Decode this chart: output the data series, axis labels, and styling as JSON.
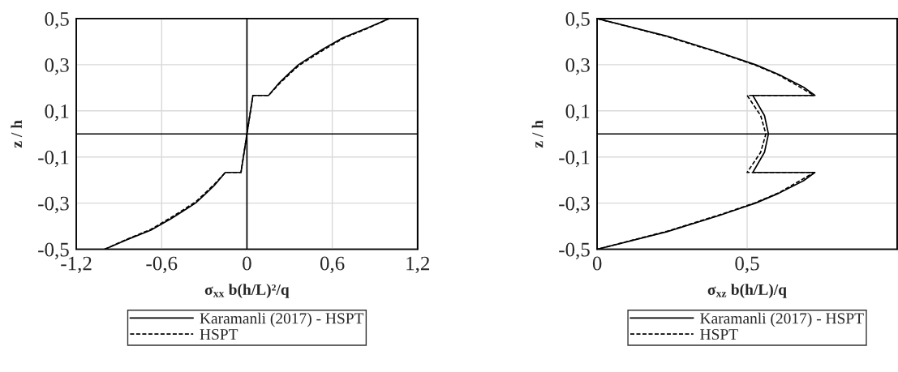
{
  "chart_data": [
    {
      "type": "line",
      "xlabel": "σ$_{xx}$ b(h/L)²/q",
      "ylabel": "z / h",
      "xlim": [
        -1.2,
        1.2
      ],
      "ylim": [
        -0.5,
        0.5
      ],
      "xticks": [
        {
          "value": -1.2,
          "label": "-1,2"
        },
        {
          "value": -0.6,
          "label": "-0,6"
        },
        0,
        {
          "value": 0.6,
          "label": "0,6"
        },
        {
          "value": 1.2,
          "label": "1,2"
        }
      ],
      "yticks": [
        {
          "value": -0.5,
          "label": "-0,5"
        },
        {
          "value": -0.3,
          "label": "-0,3"
        },
        {
          "value": -0.1,
          "label": "-0,1"
        },
        {
          "value": 0.1,
          "label": "0,1"
        },
        {
          "value": 0.3,
          "label": "0,3"
        },
        {
          "value": 0.5,
          "label": "0,5"
        }
      ],
      "grid": true,
      "legend": "bottom",
      "ref_lines": [
        {
          "axis": "x",
          "value": 0
        },
        {
          "axis": "y",
          "value": 0
        }
      ],
      "series": [
        {
          "name": "Karamanli (2017) - HSPT",
          "color": "#000000",
          "line_style": "solid",
          "x": [
            -1.0,
            -0.85,
            -0.676,
            -0.533,
            -0.45,
            -0.362,
            -0.3,
            -0.229,
            -0.152,
            -0.042,
            0,
            0.042,
            0.152,
            0.229,
            0.3,
            0.362,
            0.45,
            0.533,
            0.676,
            0.85,
            1.0
          ],
          "values": [
            -0.5,
            -0.46,
            -0.417,
            -0.367,
            -0.335,
            -0.3,
            -0.265,
            -0.223,
            -0.167,
            -0.167,
            0,
            0.167,
            0.167,
            0.223,
            0.265,
            0.3,
            0.335,
            0.367,
            0.417,
            0.46,
            0.5
          ]
        },
        {
          "name": "HSPT",
          "color": "#000000",
          "line_style": "dashed",
          "x": [
            -1.0,
            -0.85,
            -0.676,
            -0.533,
            -0.45,
            -0.362,
            -0.3,
            -0.229,
            -0.152,
            -0.042,
            0,
            0.042,
            0.152,
            0.229,
            0.3,
            0.362,
            0.45,
            0.533,
            0.676,
            0.85,
            1.0
          ],
          "values": [
            -0.5,
            -0.458,
            -0.414,
            -0.362,
            -0.33,
            -0.295,
            -0.26,
            -0.218,
            -0.167,
            -0.167,
            0,
            0.167,
            0.167,
            0.218,
            0.26,
            0.295,
            0.33,
            0.362,
            0.414,
            0.458,
            0.5
          ]
        }
      ]
    },
    {
      "type": "line",
      "xlabel": "σ$_{xz}$ b(h/L)/q",
      "ylabel": "z / h",
      "xlim": [
        0,
        1
      ],
      "ylim": [
        -0.5,
        0.5
      ],
      "xticks": [
        0,
        {
          "value": 0.5,
          "label": "0,5"
        }
      ],
      "yticks": [
        {
          "value": -0.5,
          "label": "-0,5"
        },
        {
          "value": -0.3,
          "label": "-0,3"
        },
        {
          "value": -0.1,
          "label": "-0,1"
        },
        {
          "value": 0.1,
          "label": "0,1"
        },
        {
          "value": 0.3,
          "label": "0,3"
        },
        {
          "value": 0.5,
          "label": "0,5"
        }
      ],
      "grid": true,
      "legend": "bottom",
      "ref_lines": [
        {
          "axis": "y",
          "value": 0
        }
      ],
      "series": [
        {
          "name": "Karamanli (2017) - HSPT",
          "color": "#000000",
          "line_style": "solid",
          "x": [
            0,
            0.233,
            0.406,
            0.528,
            0.606,
            0.688,
            0.726,
            0.519,
            0.558,
            0.571,
            0.558,
            0.519,
            0.726,
            0.688,
            0.606,
            0.528,
            0.406,
            0.233,
            0
          ],
          "values": [
            0.5,
            0.424,
            0.354,
            0.3,
            0.257,
            0.203,
            0.167,
            0.167,
            0.079,
            0,
            -0.079,
            -0.167,
            -0.167,
            -0.203,
            -0.257,
            -0.3,
            -0.354,
            -0.424,
            -0.5
          ]
        },
        {
          "name": "HSPT",
          "color": "#000000",
          "line_style": "dashed",
          "x": [
            0,
            0.233,
            0.406,
            0.528,
            0.606,
            0.68,
            0.723,
            0.5,
            0.545,
            0.5625,
            0.545,
            0.5,
            0.723,
            0.68,
            0.606,
            0.528,
            0.406,
            0.233,
            0
          ],
          "values": [
            0.5,
            0.422,
            0.352,
            0.298,
            0.255,
            0.2,
            0.167,
            0.167,
            0.08,
            0,
            -0.08,
            -0.167,
            -0.167,
            -0.2,
            -0.255,
            -0.298,
            -0.352,
            -0.422,
            -0.5
          ]
        }
      ]
    }
  ]
}
